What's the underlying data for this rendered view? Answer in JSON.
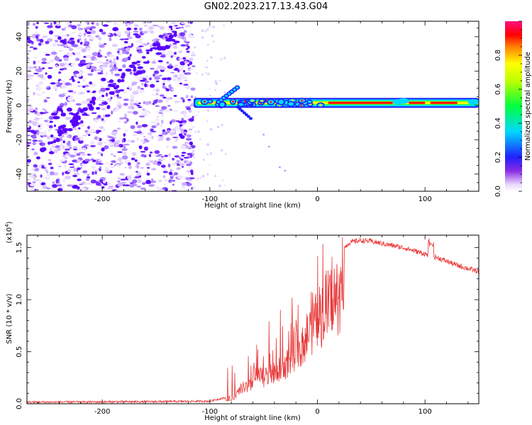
{
  "title": "GN02.2023.217.13.43.G04",
  "chart_data": [
    {
      "type": "heatmap",
      "xlabel": "Height of straight line (km)",
      "ylabel": "Frequency (Hz)",
      "xlim": [
        -270,
        150
      ],
      "ylim": [
        -50,
        49
      ],
      "xticks": [
        -200,
        -100,
        0,
        100
      ],
      "yticks": [
        -40,
        -20,
        0,
        20,
        40
      ],
      "colorbar": {
        "label": "Normalized spectral amplitude",
        "range": [
          0.0,
          1.0
        ],
        "ticks": [
          "0.0",
          "0.2",
          "0.4",
          "0.6",
          "0.8"
        ],
        "tick_values": [
          0.0,
          0.2,
          0.4,
          0.6,
          0.8
        ],
        "colormap": "rainbow (white-violet-blue-cyan-green-yellow-red-magenta)"
      },
      "noise_region_x": [
        -270,
        -115
      ],
      "band_center_frequency": 1.5,
      "band_x": [
        -115,
        150
      ]
    },
    {
      "type": "line",
      "xlabel": "Height of straight line (km)",
      "ylabel": "SNR (10 * v/v)",
      "scale_label": "(x10",
      "scale_exponent": "4",
      "scale_suffix": ")",
      "xlim": [
        -270,
        150
      ],
      "ylim": [
        0,
        1.62
      ],
      "xticks": [
        -200,
        -100,
        0,
        100
      ],
      "yticks": [
        "0.0",
        "0.5",
        "1.0",
        "1.5"
      ],
      "ytick_values": [
        0.0,
        0.5,
        1.0,
        1.5
      ],
      "line_color": "#e83838",
      "envelope_points": [
        [
          -270,
          0.015
        ],
        [
          -150,
          0.02
        ],
        [
          -100,
          0.025
        ],
        [
          -90,
          0.05
        ],
        [
          -80,
          0.06
        ],
        [
          -70,
          0.3
        ],
        [
          -60,
          0.35
        ],
        [
          -50,
          0.35
        ],
        [
          -40,
          0.4
        ],
        [
          -30,
          0.5
        ],
        [
          -20,
          0.7
        ],
        [
          -10,
          0.9
        ],
        [
          0,
          1.1
        ],
        [
          10,
          1.3
        ],
        [
          20,
          1.45
        ],
        [
          30,
          1.55
        ],
        [
          40,
          1.57
        ],
        [
          50,
          1.56
        ],
        [
          60,
          1.54
        ],
        [
          70,
          1.52
        ],
        [
          80,
          1.5
        ],
        [
          90,
          1.47
        ],
        [
          100,
          1.44
        ],
        [
          110,
          1.41
        ],
        [
          120,
          1.37
        ],
        [
          130,
          1.33
        ],
        [
          140,
          1.3
        ],
        [
          150,
          1.27
        ]
      ]
    }
  ]
}
